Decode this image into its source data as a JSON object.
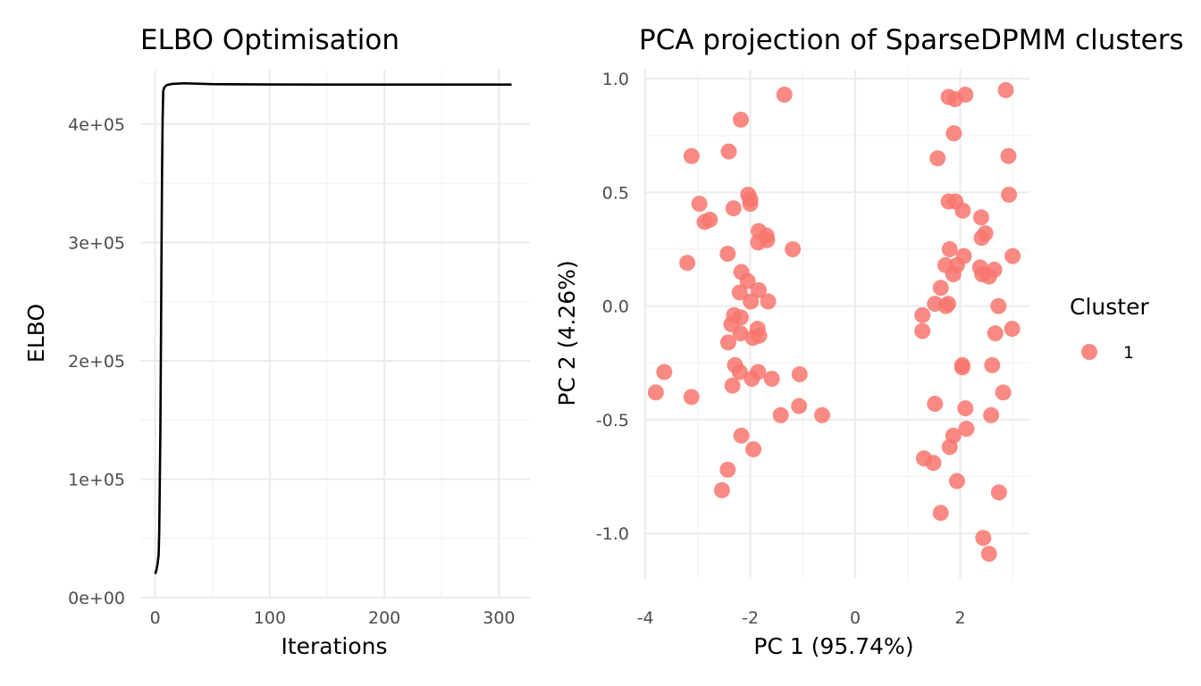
{
  "chart_data": [
    {
      "type": "line",
      "title": "ELBO Optimisation",
      "xlabel": "Iterations",
      "ylabel": "ELBO",
      "xlim": [
        -13,
        327
      ],
      "ylim": [
        0,
        446000
      ],
      "x_ticks": [
        0,
        100,
        200,
        300
      ],
      "x_tick_labels": [
        "0",
        "100",
        "200",
        "300"
      ],
      "y_ticks": [
        0,
        100000,
        200000,
        300000,
        400000
      ],
      "y_tick_labels": [
        "0e+00",
        "1e+05",
        "2e+05",
        "3e+05",
        "4e+05"
      ],
      "grid": true,
      "series": [
        {
          "name": "ELBO",
          "color": "#000000",
          "x": [
            0,
            1,
            2,
            3,
            3.5,
            4,
            4.5,
            5,
            5.5,
            6,
            6.5,
            7,
            8,
            10,
            15,
            25,
            50,
            100,
            150,
            200,
            250,
            300,
            311
          ],
          "y": [
            20000,
            23000,
            28000,
            36000,
            55000,
            95000,
            140000,
            210000,
            290000,
            360000,
            405000,
            428000,
            431000,
            433000,
            434000,
            434500,
            433800,
            433500,
            433400,
            433400,
            433400,
            433400,
            433400
          ]
        }
      ]
    },
    {
      "type": "scatter",
      "title": "PCA projection of SparseDPMM clusters",
      "xlabel": "PC 1 (95.74%)",
      "ylabel": "PC 2 (4.26%)",
      "xlim": [
        -4.02,
        3.32
      ],
      "ylim": [
        -1.2,
        1.04
      ],
      "x_ticks": [
        -4,
        -2,
        0,
        2
      ],
      "x_tick_labels": [
        "-4",
        "-2",
        "0",
        "2"
      ],
      "y_ticks": [
        -1.0,
        -0.5,
        0.0,
        0.5,
        1.0
      ],
      "y_tick_labels": [
        "-1.0",
        "-0.5",
        "0.0",
        "0.5",
        "1.0"
      ],
      "grid": true,
      "legend": {
        "title": "Cluster",
        "position": "right",
        "entries": [
          "1"
        ]
      },
      "series": [
        {
          "name": "1",
          "color": "#F8766D",
          "points": [
            [
              -1.35,
              0.93
            ],
            [
              -2.18,
              0.82
            ],
            [
              -3.12,
              0.66
            ],
            [
              -2.41,
              0.68
            ],
            [
              -2.97,
              0.45
            ],
            [
              -2.87,
              0.37
            ],
            [
              -2.77,
              0.38
            ],
            [
              -2.32,
              0.43
            ],
            [
              -2.04,
              0.49
            ],
            [
              -2.0,
              0.47
            ],
            [
              -2.0,
              0.45
            ],
            [
              -1.84,
              0.33
            ],
            [
              -1.69,
              0.31
            ],
            [
              -1.68,
              0.29
            ],
            [
              -1.85,
              0.28
            ],
            [
              -2.43,
              0.23
            ],
            [
              -1.19,
              0.25
            ],
            [
              -3.2,
              0.19
            ],
            [
              -2.17,
              0.15
            ],
            [
              -2.05,
              0.11
            ],
            [
              -2.2,
              0.06
            ],
            [
              -1.84,
              0.07
            ],
            [
              -1.66,
              0.02
            ],
            [
              -1.99,
              0.02
            ],
            [
              -2.31,
              -0.04
            ],
            [
              -2.18,
              -0.05
            ],
            [
              -2.36,
              -0.08
            ],
            [
              -1.86,
              -0.1
            ],
            [
              -2.19,
              -0.12
            ],
            [
              -1.83,
              -0.13
            ],
            [
              -1.95,
              -0.14
            ],
            [
              -2.42,
              -0.16
            ],
            [
              -2.29,
              -0.26
            ],
            [
              -2.2,
              -0.29
            ],
            [
              -1.85,
              -0.29
            ],
            [
              -1.97,
              -0.32
            ],
            [
              -1.59,
              -0.32
            ],
            [
              -1.06,
              -0.3
            ],
            [
              -2.34,
              -0.35
            ],
            [
              -3.64,
              -0.29
            ],
            [
              -3.8,
              -0.38
            ],
            [
              -3.12,
              -0.4
            ],
            [
              -1.07,
              -0.44
            ],
            [
              -1.42,
              -0.48
            ],
            [
              -0.63,
              -0.48
            ],
            [
              -2.17,
              -0.57
            ],
            [
              -1.94,
              -0.63
            ],
            [
              -2.43,
              -0.72
            ],
            [
              -2.54,
              -0.81
            ],
            [
              1.78,
              0.92
            ],
            [
              1.9,
              0.91
            ],
            [
              2.1,
              0.93
            ],
            [
              2.87,
              0.95
            ],
            [
              1.88,
              0.76
            ],
            [
              1.57,
              0.65
            ],
            [
              2.92,
              0.66
            ],
            [
              1.78,
              0.46
            ],
            [
              1.91,
              0.46
            ],
            [
              2.05,
              0.42
            ],
            [
              2.93,
              0.49
            ],
            [
              2.4,
              0.39
            ],
            [
              2.48,
              0.32
            ],
            [
              2.41,
              0.3
            ],
            [
              1.8,
              0.25
            ],
            [
              2.07,
              0.22
            ],
            [
              3.0,
              0.22
            ],
            [
              1.72,
              0.18
            ],
            [
              1.94,
              0.18
            ],
            [
              2.38,
              0.17
            ],
            [
              2.65,
              0.16
            ],
            [
              1.87,
              0.14
            ],
            [
              2.42,
              0.14
            ],
            [
              2.55,
              0.13
            ],
            [
              1.63,
              0.08
            ],
            [
              1.52,
              0.01
            ],
            [
              1.73,
              0.0
            ],
            [
              1.77,
              0.01
            ],
            [
              2.73,
              0.0
            ],
            [
              1.28,
              -0.04
            ],
            [
              1.28,
              -0.11
            ],
            [
              2.99,
              -0.1
            ],
            [
              2.67,
              -0.12
            ],
            [
              2.04,
              -0.26
            ],
            [
              2.04,
              -0.27
            ],
            [
              2.61,
              -0.26
            ],
            [
              2.82,
              -0.38
            ],
            [
              1.52,
              -0.43
            ],
            [
              2.1,
              -0.45
            ],
            [
              2.59,
              -0.48
            ],
            [
              2.12,
              -0.54
            ],
            [
              1.87,
              -0.57
            ],
            [
              1.8,
              -0.62
            ],
            [
              1.31,
              -0.67
            ],
            [
              1.49,
              -0.69
            ],
            [
              1.94,
              -0.77
            ],
            [
              2.74,
              -0.82
            ],
            [
              1.63,
              -0.91
            ],
            [
              2.44,
              -1.02
            ],
            [
              2.55,
              -1.09
            ]
          ]
        }
      ]
    }
  ]
}
